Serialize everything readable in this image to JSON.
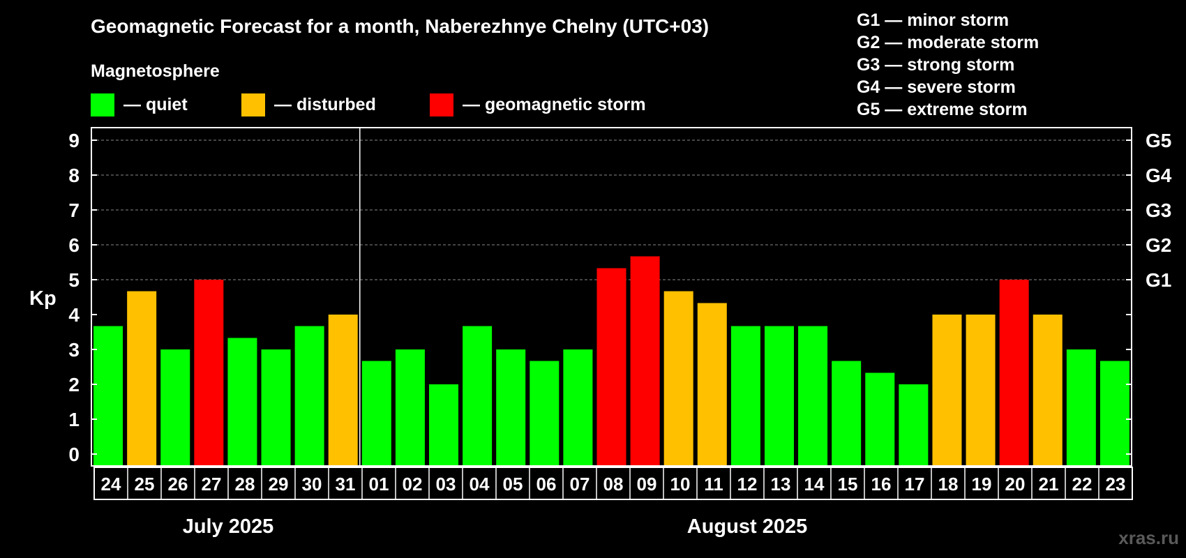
{
  "chart_data": {
    "type": "bar",
    "title": "Geomagnetic Forecast for a month, Naberezhnye Chelny (UTC+03)",
    "legend_title": "Magnetosphere",
    "legend": [
      {
        "label": "— quiet",
        "color": "#00ff00"
      },
      {
        "label": "— disturbed",
        "color": "#ffc000"
      },
      {
        "label": "— geomagnetic storm",
        "color": "#ff0000"
      }
    ],
    "storm_scale": [
      "G1 — minor storm",
      "G2 — moderate storm",
      "G3 — strong storm",
      "G4 — severe storm",
      "G5 — extreme storm"
    ],
    "ylabel": "Kp",
    "ylim": [
      0,
      9
    ],
    "yticks": [
      "0",
      "1",
      "2",
      "3",
      "4",
      "5",
      "6",
      "7",
      "8",
      "9"
    ],
    "right_ticks": [
      {
        "y": 5,
        "label": "G1"
      },
      {
        "y": 6,
        "label": "G2"
      },
      {
        "y": 7,
        "label": "G3"
      },
      {
        "y": 8,
        "label": "G4"
      },
      {
        "y": 9,
        "label": "G5"
      }
    ],
    "grid": "dashed horizontal lines at Kp 5–9",
    "categories": [
      "24",
      "25",
      "26",
      "27",
      "28",
      "29",
      "30",
      "31",
      "01",
      "02",
      "03",
      "04",
      "05",
      "06",
      "07",
      "08",
      "09",
      "10",
      "11",
      "12",
      "13",
      "14",
      "15",
      "16",
      "17",
      "18",
      "19",
      "20",
      "21",
      "22",
      "23"
    ],
    "values": [
      3.67,
      4.67,
      3.0,
      5.0,
      3.33,
      3.0,
      3.67,
      4.0,
      2.67,
      3.0,
      2.0,
      3.67,
      3.0,
      2.67,
      3.0,
      5.33,
      5.67,
      4.67,
      4.33,
      3.67,
      3.67,
      3.67,
      2.67,
      2.33,
      2.0,
      4.0,
      4.0,
      5.0,
      4.0,
      3.0,
      2.67
    ],
    "levels": [
      "quiet",
      "disturbed",
      "quiet",
      "storm",
      "quiet",
      "quiet",
      "quiet",
      "disturbed",
      "quiet",
      "quiet",
      "quiet",
      "quiet",
      "quiet",
      "quiet",
      "quiet",
      "storm",
      "storm",
      "disturbed",
      "disturbed",
      "quiet",
      "quiet",
      "quiet",
      "quiet",
      "quiet",
      "quiet",
      "disturbed",
      "disturbed",
      "storm",
      "disturbed",
      "quiet",
      "quiet"
    ],
    "level_colors": {
      "quiet": "#00ff00",
      "disturbed": "#ffc000",
      "storm": "#ff0000"
    },
    "months": [
      {
        "label": "July 2025",
        "first": 0,
        "last": 7
      },
      {
        "label": "August 2025",
        "first": 8,
        "last": 30
      }
    ],
    "watermark": "xras.ru"
  }
}
